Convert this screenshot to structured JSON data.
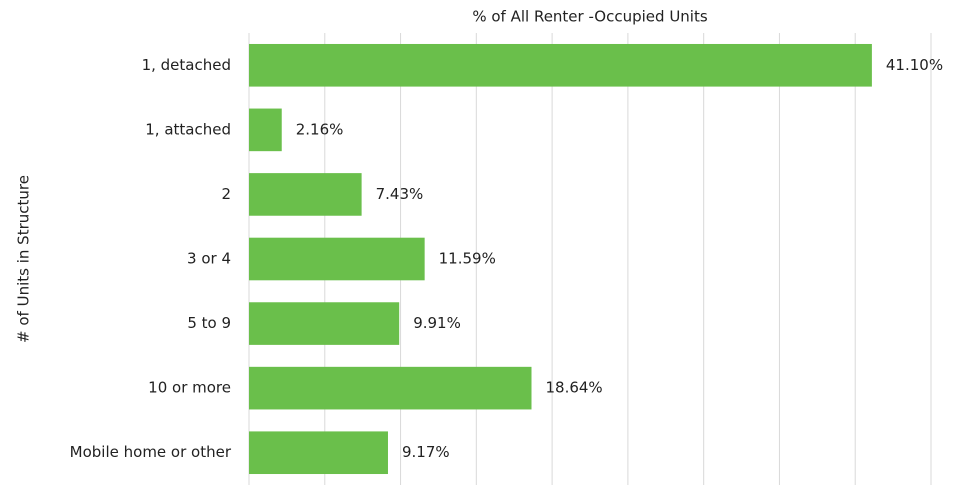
{
  "chart_data": {
    "type": "hbar",
    "title": "% of All Renter -Occupied Units",
    "y_label": "# of Units in Structure",
    "categories": [
      "1, detached",
      "1, attached",
      "2",
      "3 or 4",
      "5 to 9",
      "10 or more",
      "Mobile home or other"
    ],
    "values": [
      41.1,
      2.16,
      7.43,
      11.59,
      9.91,
      18.64,
      9.17
    ],
    "value_labels": [
      "41.10%",
      "2.16%",
      "7.43%",
      "11.59%",
      "9.91%",
      "18.64%",
      "9.17%"
    ],
    "color": "#6abf4b",
    "xlim": [
      0,
      45
    ],
    "xticks": [
      0,
      5,
      10,
      15,
      20,
      25,
      30,
      35,
      40,
      45
    ],
    "grid": true
  }
}
